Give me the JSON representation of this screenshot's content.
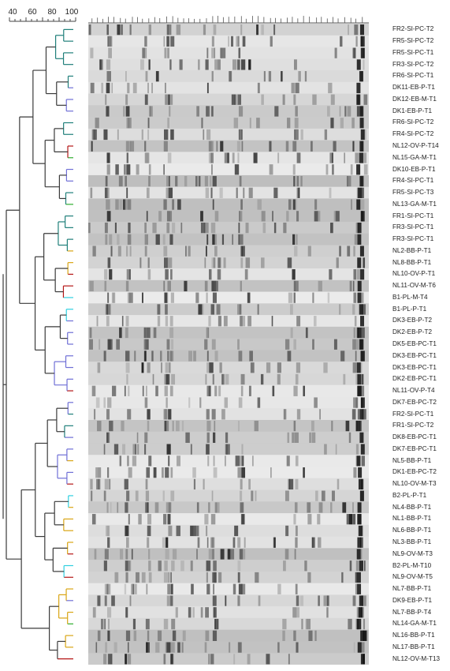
{
  "scale": {
    "ticks": [
      "40",
      "60",
      "80",
      "100"
    ]
  },
  "colors": {
    "trunk": "#3a3a3a",
    "FR": "#1f7f7a",
    "DK": "#6f6fd6",
    "NL_BB": "#d9a514",
    "NL_OV": "#b51616",
    "GA": "#2fae2f",
    "PL": "#2fd0e0"
  },
  "lanes": [
    {
      "label": "FR2-SI-PC-T2",
      "group": "FR"
    },
    {
      "label": "FR5-SI-PC-T2",
      "group": "FR"
    },
    {
      "label": "FR5-SI-PC-T1",
      "group": "FR"
    },
    {
      "label": "FR3-SI-PC-T2",
      "group": "FR"
    },
    {
      "label": "FR6-SI-PC-T1",
      "group": "FR"
    },
    {
      "label": "DK11-EB-P-T1",
      "group": "DK"
    },
    {
      "label": "DK12-EB-M-T1",
      "group": "DK"
    },
    {
      "label": "DK1-EB-P-T1",
      "group": "DK"
    },
    {
      "label": "FR6-SI-PC-T2",
      "group": "FR"
    },
    {
      "label": "FR4-SI-PC-T2",
      "group": "FR"
    },
    {
      "label": "NL12-OV-P-T14",
      "group": "NL_OV"
    },
    {
      "label": "NL15-GA-M-T1",
      "group": "GA"
    },
    {
      "label": "DK10-EB-P-T1",
      "group": "DK"
    },
    {
      "label": "FR4-SI-PC-T1",
      "group": "DK"
    },
    {
      "label": "FR5-SI-PC-T3",
      "group": "FR"
    },
    {
      "label": "NL13-GA-M-T1",
      "group": "GA"
    },
    {
      "label": "FR1-SI-PC-T1",
      "group": "FR"
    },
    {
      "label": "FR3-SI-PC-T1",
      "group": "FR"
    },
    {
      "label": "FR3-SI-PC-T1",
      "group": "FR"
    },
    {
      "label": "NL2-BB-P-T1",
      "group": "NL_BB"
    },
    {
      "label": "NL8-BB-P-T1",
      "group": "NL_BB"
    },
    {
      "label": "NL10-OV-P-T1",
      "group": "NL_OV"
    },
    {
      "label": "NL11-OV-M-T6",
      "group": "NL_OV"
    },
    {
      "label": "B1-PL-M-T4",
      "group": "PL"
    },
    {
      "label": "B1-PL-P-T1",
      "group": "PL"
    },
    {
      "label": "DK3-EB-P-T2",
      "group": "DK"
    },
    {
      "label": "DK2-EB-P-T2",
      "group": "DK"
    },
    {
      "label": "DK5-EB-PC-T1",
      "group": "DK"
    },
    {
      "label": "DK3-EB-PC-T1",
      "group": "DK"
    },
    {
      "label": "DK3-EB-PC-T1",
      "group": "DK"
    },
    {
      "label": "DK2-EB-PC-T1",
      "group": "DK"
    },
    {
      "label": "NL11-OV-P-T4",
      "group": "NL_OV"
    },
    {
      "label": "DK7-EB-PC-T2",
      "group": "DK"
    },
    {
      "label": "FR2-SI-PC-T1",
      "group": "FR"
    },
    {
      "label": "FR1-SI-PC-T2",
      "group": "FR"
    },
    {
      "label": "DK8-EB-PC-T1",
      "group": "DK"
    },
    {
      "label": "DK7-EB-PC-T1",
      "group": "DK"
    },
    {
      "label": "NL5-BB-P-T1",
      "group": "NL_BB"
    },
    {
      "label": "DK1-EB-PC-T2",
      "group": "DK"
    },
    {
      "label": "NL10-OV-M-T3",
      "group": "NL_OV"
    },
    {
      "label": "B2-PL-P-T1",
      "group": "PL"
    },
    {
      "label": "NL4-BB-P-T1",
      "group": "NL_BB"
    },
    {
      "label": "NL1-BB-P-T1",
      "group": "NL_BB"
    },
    {
      "label": "NL6-BB-P-T1",
      "group": "NL_BB"
    },
    {
      "label": "NL3-BB-P-T1",
      "group": "NL_BB"
    },
    {
      "label": "NL9-OV-M-T3",
      "group": "NL_OV"
    },
    {
      "label": "B2-PL-M-T10",
      "group": "PL"
    },
    {
      "label": "NL9-OV-M-T5",
      "group": "NL_OV"
    },
    {
      "label": "NL7-BB-P-T1",
      "group": "NL_BB"
    },
    {
      "label": "DK9-EB-P-T1",
      "group": "DK"
    },
    {
      "label": "NL7-BB-P-T4",
      "group": "NL_BB"
    },
    {
      "label": "NL14-GA-M-T1",
      "group": "GA"
    },
    {
      "label": "NL16-BB-P-T1",
      "group": "NL_BB"
    },
    {
      "label": "NL17-BB-P-T1",
      "group": "NL_BB"
    },
    {
      "label": "NL12-OV-M-T13",
      "group": "NL_OV"
    }
  ]
}
